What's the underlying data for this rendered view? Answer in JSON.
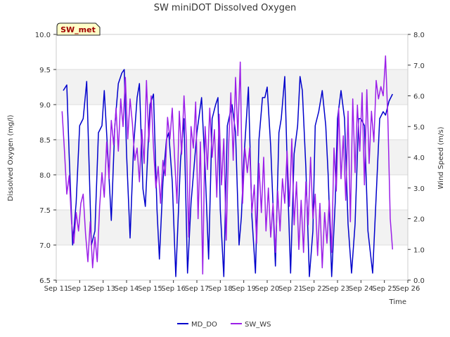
{
  "chart_data": {
    "type": "line",
    "title": "SW miniDOT Dissolved Oxygen",
    "xlabel": "Time",
    "ylabel": "Dissolved Oxygen (mg/l)",
    "y2label": "Wind Speed (m/s)",
    "site_badge": "SW_met",
    "xlim": [
      11,
      26
    ],
    "ylim": [
      6.5,
      10.0
    ],
    "y2lim": [
      0.0,
      8.0
    ],
    "x_ticks": [
      11,
      12,
      13,
      14,
      15,
      16,
      17,
      18,
      19,
      20,
      21,
      22,
      23,
      24,
      25,
      26
    ],
    "x_tick_labels": [
      "Sep 11",
      "Sep 12",
      "Sep 13",
      "Sep 14",
      "Sep 15",
      "Sep 16",
      "Sep 17",
      "Sep 18",
      "Sep 19",
      "Sep 20",
      "Sep 21",
      "Sep 22",
      "Sep 23",
      "Sep 24",
      "Sep 25",
      "Sep 26"
    ],
    "y_ticks": [
      6.5,
      7.0,
      7.5,
      8.0,
      8.5,
      9.0,
      9.5,
      10.0
    ],
    "y_tick_labels": [
      "6.5",
      "7.0",
      "7.5",
      "8.0",
      "8.5",
      "9.0",
      "9.5",
      "10.0"
    ],
    "y2_ticks": [
      0,
      1,
      2,
      3,
      4,
      5,
      6,
      7,
      8
    ],
    "y2_tick_labels": [
      "0.0",
      "1.0",
      "2.0",
      "3.0",
      "4.0",
      "5.0",
      "6.0",
      "7.0",
      "8.0"
    ],
    "bands": [
      [
        7.0,
        7.5
      ],
      [
        8.0,
        8.5
      ],
      [
        9.0,
        9.5
      ]
    ],
    "grid": true,
    "legend_position": "bottom-center",
    "series": [
      {
        "name": "MD_DO",
        "axis": "left",
        "color": "#0000cc",
        "x": [
          11.3,
          11.45,
          11.55,
          11.7,
          11.85,
          12.0,
          12.15,
          12.3,
          12.5,
          12.65,
          12.8,
          12.95,
          13.05,
          13.2,
          13.35,
          13.5,
          13.65,
          13.8,
          13.9,
          14.0,
          14.15,
          14.3,
          14.45,
          14.55,
          14.7,
          14.8,
          15.0,
          15.15,
          15.3,
          15.4,
          15.55,
          15.7,
          15.8,
          15.95,
          16.1,
          16.3,
          16.45,
          16.6,
          16.75,
          16.9,
          17.0,
          17.2,
          17.35,
          17.5,
          17.65,
          17.8,
          17.9,
          18.0,
          18.15,
          18.3,
          18.5,
          18.65,
          18.8,
          18.9,
          19.0,
          19.2,
          19.35,
          19.5,
          19.65,
          19.8,
          19.9,
          20.0,
          20.15,
          20.35,
          20.5,
          20.6,
          20.75,
          20.9,
          21.0,
          21.15,
          21.3,
          21.4,
          21.5,
          21.65,
          21.8,
          21.95,
          22.05,
          22.2,
          22.35,
          22.5,
          22.6,
          22.75,
          22.9,
          23.0,
          23.15,
          23.3,
          23.45,
          23.6,
          23.75,
          23.9,
          24.0,
          24.15,
          24.3,
          24.5,
          24.65,
          24.8,
          24.95,
          25.05,
          25.2,
          25.35
        ],
        "y": [
          9.2,
          9.28,
          8.3,
          7.0,
          7.6,
          8.7,
          8.8,
          9.33,
          7.0,
          7.2,
          8.6,
          8.7,
          9.2,
          8.3,
          7.35,
          8.7,
          9.3,
          9.45,
          9.5,
          8.3,
          7.1,
          8.4,
          9.1,
          9.3,
          7.8,
          7.55,
          9.0,
          9.15,
          7.5,
          6.8,
          7.9,
          8.5,
          8.6,
          7.9,
          6.55,
          8.2,
          8.8,
          6.6,
          7.6,
          8.2,
          8.6,
          9.1,
          8.1,
          6.8,
          8.8,
          9.0,
          9.1,
          7.5,
          6.55,
          8.7,
          9.0,
          8.6,
          7.0,
          7.4,
          8.2,
          9.25,
          7.4,
          6.6,
          8.5,
          9.1,
          9.1,
          9.25,
          8.4,
          6.7,
          8.6,
          8.8,
          9.4,
          7.6,
          6.6,
          8.3,
          8.7,
          9.4,
          9.2,
          8.1,
          6.55,
          7.2,
          8.7,
          8.9,
          9.2,
          8.7,
          8.0,
          6.55,
          7.6,
          8.8,
          9.2,
          8.8,
          7.3,
          6.6,
          7.3,
          8.8,
          8.8,
          8.7,
          7.2,
          6.6,
          7.7,
          8.8,
          8.9,
          8.85,
          9.05,
          9.15
        ]
      },
      {
        "name": "SW_WS",
        "axis": "right",
        "color": "#9b1fe8",
        "x": [
          11.25,
          11.35,
          11.45,
          11.55,
          11.65,
          11.75,
          11.85,
          11.95,
          12.05,
          12.15,
          12.25,
          12.35,
          12.45,
          12.55,
          12.65,
          12.75,
          12.85,
          12.95,
          13.05,
          13.15,
          13.25,
          13.35,
          13.45,
          13.55,
          13.65,
          13.75,
          13.85,
          13.95,
          14.05,
          14.15,
          14.25,
          14.35,
          14.45,
          14.55,
          14.65,
          14.75,
          14.85,
          14.95,
          15.05,
          15.15,
          15.25,
          15.35,
          15.45,
          15.55,
          15.65,
          15.75,
          15.85,
          15.95,
          16.05,
          16.15,
          16.25,
          16.35,
          16.45,
          16.55,
          16.65,
          16.75,
          16.85,
          16.95,
          17.05,
          17.15,
          17.25,
          17.35,
          17.45,
          17.55,
          17.65,
          17.75,
          17.85,
          17.95,
          18.05,
          18.15,
          18.25,
          18.35,
          18.45,
          18.55,
          18.65,
          18.75,
          18.85,
          18.95,
          19.05,
          19.15,
          19.25,
          19.35,
          19.45,
          19.55,
          19.65,
          19.75,
          19.85,
          19.95,
          20.05,
          20.15,
          20.25,
          20.35,
          20.45,
          20.55,
          20.65,
          20.75,
          20.85,
          20.95,
          21.05,
          21.15,
          21.25,
          21.35,
          21.45,
          21.55,
          21.65,
          21.75,
          21.85,
          21.95,
          22.05,
          22.15,
          22.25,
          22.35,
          22.45,
          22.55,
          22.65,
          22.75,
          22.85,
          22.95,
          23.05,
          23.15,
          23.25,
          23.35,
          23.45,
          23.55,
          23.65,
          23.75,
          23.85,
          23.95,
          24.05,
          24.15,
          24.25,
          24.35,
          24.45,
          24.55,
          24.65,
          24.75,
          24.85,
          24.95,
          25.05,
          25.15,
          25.25,
          25.35
        ],
        "y": [
          5.5,
          4.2,
          2.8,
          3.4,
          1.9,
          1.2,
          2.2,
          1.6,
          2.5,
          2.8,
          1.5,
          0.6,
          1.9,
          0.4,
          1.4,
          0.6,
          2.4,
          3.5,
          2.7,
          4.5,
          3.3,
          5.2,
          4.4,
          5.6,
          4.2,
          5.9,
          5.0,
          6.6,
          4.6,
          5.9,
          5.1,
          3.9,
          4.3,
          3.2,
          4.9,
          3.8,
          6.5,
          4.5,
          6.0,
          4.3,
          3.0,
          3.7,
          2.5,
          3.9,
          3.4,
          5.3,
          4.6,
          5.6,
          4.0,
          2.5,
          5.5,
          4.1,
          6.0,
          4.6,
          1.4,
          5.0,
          4.3,
          5.8,
          2.0,
          4.5,
          0.2,
          5.0,
          3.6,
          5.6,
          4.0,
          4.9,
          2.7,
          5.4,
          3.1,
          4.6,
          1.3,
          4.3,
          6.1,
          3.9,
          6.6,
          4.7,
          7.1,
          2.5,
          4.3,
          3.5,
          4.3,
          2.2,
          3.1,
          1.2,
          3.8,
          2.2,
          4.0,
          1.6,
          3.0,
          1.4,
          2.5,
          0.9,
          2.9,
          1.6,
          3.3,
          2.5,
          4.2,
          2.4,
          4.6,
          1.8,
          3.2,
          1.0,
          2.6,
          0.9,
          3.2,
          1.8,
          4.0,
          2.0,
          2.8,
          0.8,
          2.5,
          0.4,
          2.2,
          1.2,
          2.6,
          0.9,
          4.3,
          2.9,
          5.6,
          3.3,
          4.7,
          2.6,
          5.5,
          1.9,
          5.9,
          3.5,
          5.7,
          4.2,
          6.1,
          3.1,
          6.2,
          3.8,
          5.5,
          4.5,
          6.5,
          5.9,
          6.3,
          6.0,
          7.3,
          5.2,
          2.0,
          1.0
        ]
      }
    ]
  }
}
